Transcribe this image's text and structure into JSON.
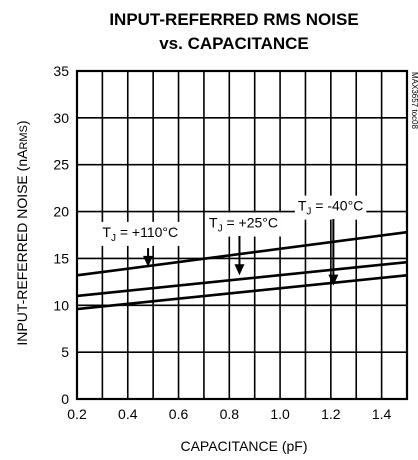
{
  "chart_data": {
    "type": "line",
    "title_lines": [
      "INPUT-REFERRED RMS NOISE",
      "vs. CAPACITANCE"
    ],
    "xlabel": "CAPACITANCE (pF)",
    "ylabel_main": "INPUT-REFERRED NOISE (nA",
    "ylabel_sub": "RMS",
    "ylabel_close": ")",
    "xlim": [
      0.2,
      1.5
    ],
    "ylim": [
      0,
      35
    ],
    "x_ticks": [
      0.2,
      0.4,
      0.6,
      0.8,
      1.0,
      1.2,
      1.4
    ],
    "x_tick_labels": [
      "0.2",
      "0.4",
      "0.6",
      "0.8",
      "1.0",
      "1.2",
      "1.4"
    ],
    "y_ticks": [
      0,
      5,
      10,
      15,
      20,
      25,
      30,
      35
    ],
    "y_tick_labels": [
      "0",
      "5",
      "10",
      "15",
      "20",
      "25",
      "30",
      "35"
    ],
    "x_grid": [
      0.2,
      0.3,
      0.4,
      0.5,
      0.6,
      0.7,
      0.8,
      0.9,
      1.0,
      1.1,
      1.2,
      1.3,
      1.4,
      1.5
    ],
    "y_grid": [
      5,
      10,
      15,
      20,
      25,
      30
    ],
    "series": [
      {
        "name": "T_J = +110°C",
        "x": [
          0.2,
          1.5
        ],
        "y": [
          13.2,
          17.8
        ]
      },
      {
        "name": "T_J = +25°C",
        "x": [
          0.2,
          1.5
        ],
        "y": [
          11.0,
          14.6
        ]
      },
      {
        "name": "T_J = -40°C",
        "x": [
          0.2,
          1.5
        ],
        "y": [
          9.6,
          13.2
        ]
      }
    ],
    "annotations": [
      {
        "pre": "T",
        "sub": "J",
        "post": " = +110°C",
        "label_at": [
          0.3,
          17.3
        ],
        "arrow_from": [
          0.48,
          16.1
        ],
        "arrow_to": [
          0.48,
          14.1
        ]
      },
      {
        "pre": "T",
        "sub": "J",
        "post": " = +25°C",
        "label_at": [
          0.72,
          18.3
        ],
        "arrow_from": [
          0.84,
          17.4
        ],
        "arrow_to": [
          0.84,
          13.2
        ]
      },
      {
        "pre": "T",
        "sub": "J",
        "post": " = -40°C",
        "label_at": [
          1.07,
          20.1
        ],
        "arrow_from": [
          1.21,
          19.2
        ],
        "arrow_to": [
          1.21,
          12.1
        ]
      }
    ],
    "side_text": "MAX3657 toc08",
    "grid": true
  }
}
